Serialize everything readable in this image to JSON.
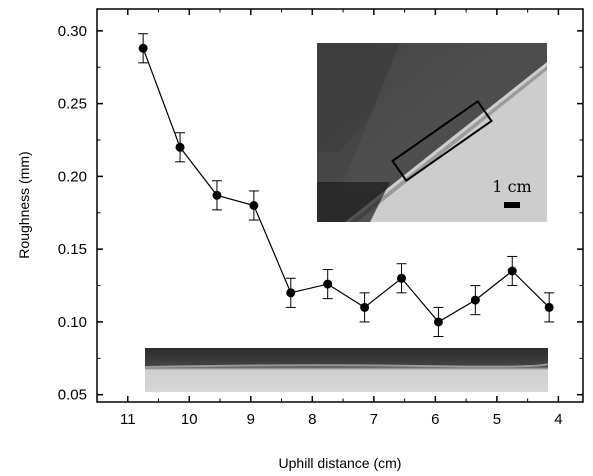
{
  "chart_data": {
    "type": "line",
    "title": "",
    "xlabel": "Uphill distance (cm)",
    "ylabel": "Roughness (mm)",
    "xlim": [
      11.5,
      3.6
    ],
    "ylim": [
      0.045,
      0.315
    ],
    "x_reversed": true,
    "x_ticks": [
      11,
      10,
      9,
      8,
      7,
      6,
      5,
      4
    ],
    "y_ticks": [
      0.05,
      0.1,
      0.15,
      0.2,
      0.25,
      0.3
    ],
    "x_tick_labels": [
      "11",
      "10",
      "9",
      "8",
      "7",
      "6",
      "5",
      "4"
    ],
    "y_tick_labels": [
      "0.05",
      "0.10",
      "0.15",
      "0.20",
      "0.25",
      "0.30"
    ],
    "grid": false,
    "series": [
      {
        "x": [
          10.75,
          10.15,
          9.55,
          8.95,
          8.35,
          7.75,
          7.15,
          6.55,
          5.95,
          5.35,
          4.75,
          4.15
        ],
        "y": [
          0.288,
          0.22,
          0.187,
          0.18,
          0.12,
          0.126,
          0.11,
          0.13,
          0.1,
          0.115,
          0.135,
          0.11
        ],
        "error": [
          0.01,
          0.01,
          0.01,
          0.01,
          0.01,
          0.01,
          0.01,
          0.01,
          0.01,
          0.01,
          0.01,
          0.01
        ],
        "color": "#000000",
        "marker": "circle"
      }
    ],
    "annotations": [
      {
        "text": "1 cm"
      }
    ]
  }
}
